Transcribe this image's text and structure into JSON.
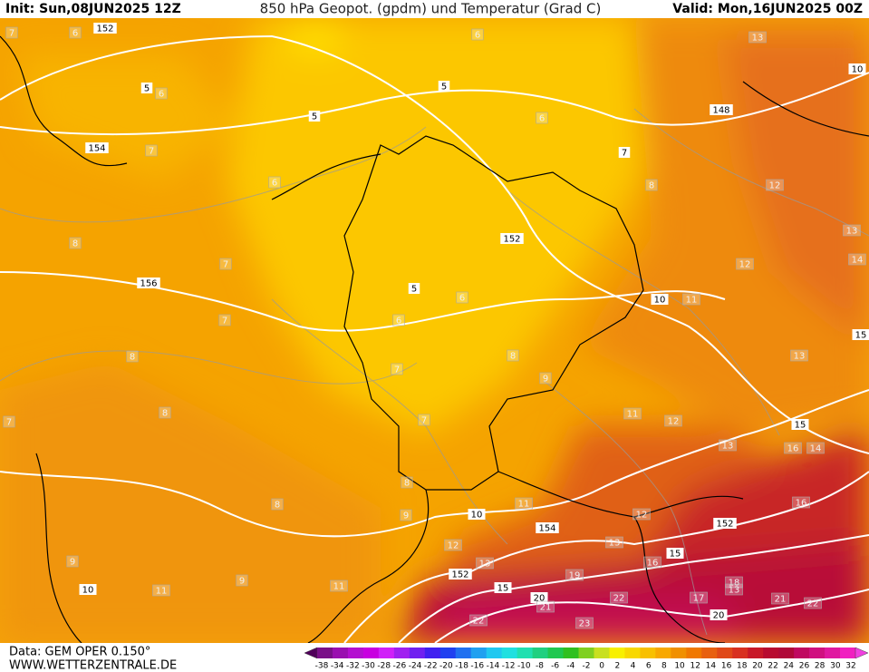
{
  "header": {
    "init": "Init: Sun,08JUN2025 12Z",
    "title": "850 hPa Geopot. (gpdm) und Temperatur (Grad C)",
    "valid": "Valid: Mon,16JUN2025 00Z"
  },
  "footer": {
    "data": "Data: GEM OPER 0.150°",
    "site": "WWW.WETTERZENTRALE.DE"
  },
  "legend": {
    "labels": [
      "-38",
      "-34",
      "-32",
      "-30",
      "-28",
      "-26",
      "-24",
      "-22",
      "-20",
      "-18",
      "-16",
      "-14",
      "-12",
      "-10",
      "-8",
      "-6",
      "-4",
      "-2",
      "0",
      "2",
      "4",
      "6",
      "8",
      "10",
      "12",
      "14",
      "16",
      "18",
      "20",
      "22",
      "24",
      "26",
      "28",
      "30",
      "32"
    ],
    "colors": [
      "#50005a",
      "#7a1088",
      "#9a10b0",
      "#b410d0",
      "#c800e0",
      "#d020f8",
      "#a020f0",
      "#7020f0",
      "#4020f0",
      "#2040f0",
      "#2070f0",
      "#20a0f0",
      "#20c8f0",
      "#20e0e0",
      "#20e0b0",
      "#20d080",
      "#20c850",
      "#30c020",
      "#80d020",
      "#c8e020",
      "#f8f000",
      "#f8d800",
      "#f8c000",
      "#f8a800",
      "#f09000",
      "#f07800",
      "#e86010",
      "#e04818",
      "#d83020",
      "#c81828",
      "#b80a30",
      "#b00838",
      "#c00860",
      "#d01080",
      "#e018a0",
      "#f020c0",
      "#f040e0"
    ]
  },
  "map_labels": [
    "152",
    "5",
    "5",
    "6",
    "5",
    "6",
    "6",
    "7",
    "8",
    "13",
    "10",
    "148",
    "12",
    "13",
    "14",
    "12",
    "11",
    "10",
    "152",
    "5",
    "6",
    "6",
    "7",
    "8",
    "9",
    "13",
    "15",
    "11",
    "12",
    "13",
    "15",
    "16",
    "14",
    "16",
    "7",
    "8",
    "9",
    "10",
    "11",
    "12",
    "152",
    "154",
    "12",
    "13",
    "13",
    "15",
    "16",
    "19",
    "18",
    "13",
    "152",
    "15",
    "20",
    "21",
    "22",
    "17",
    "21",
    "22",
    "20",
    "22",
    "23",
    "154",
    "7",
    "6",
    "8",
    "7",
    "156",
    "7",
    "8",
    "8",
    "8",
    "9",
    "10",
    "11",
    "11",
    "9",
    "7",
    "6",
    "7"
  ]
}
